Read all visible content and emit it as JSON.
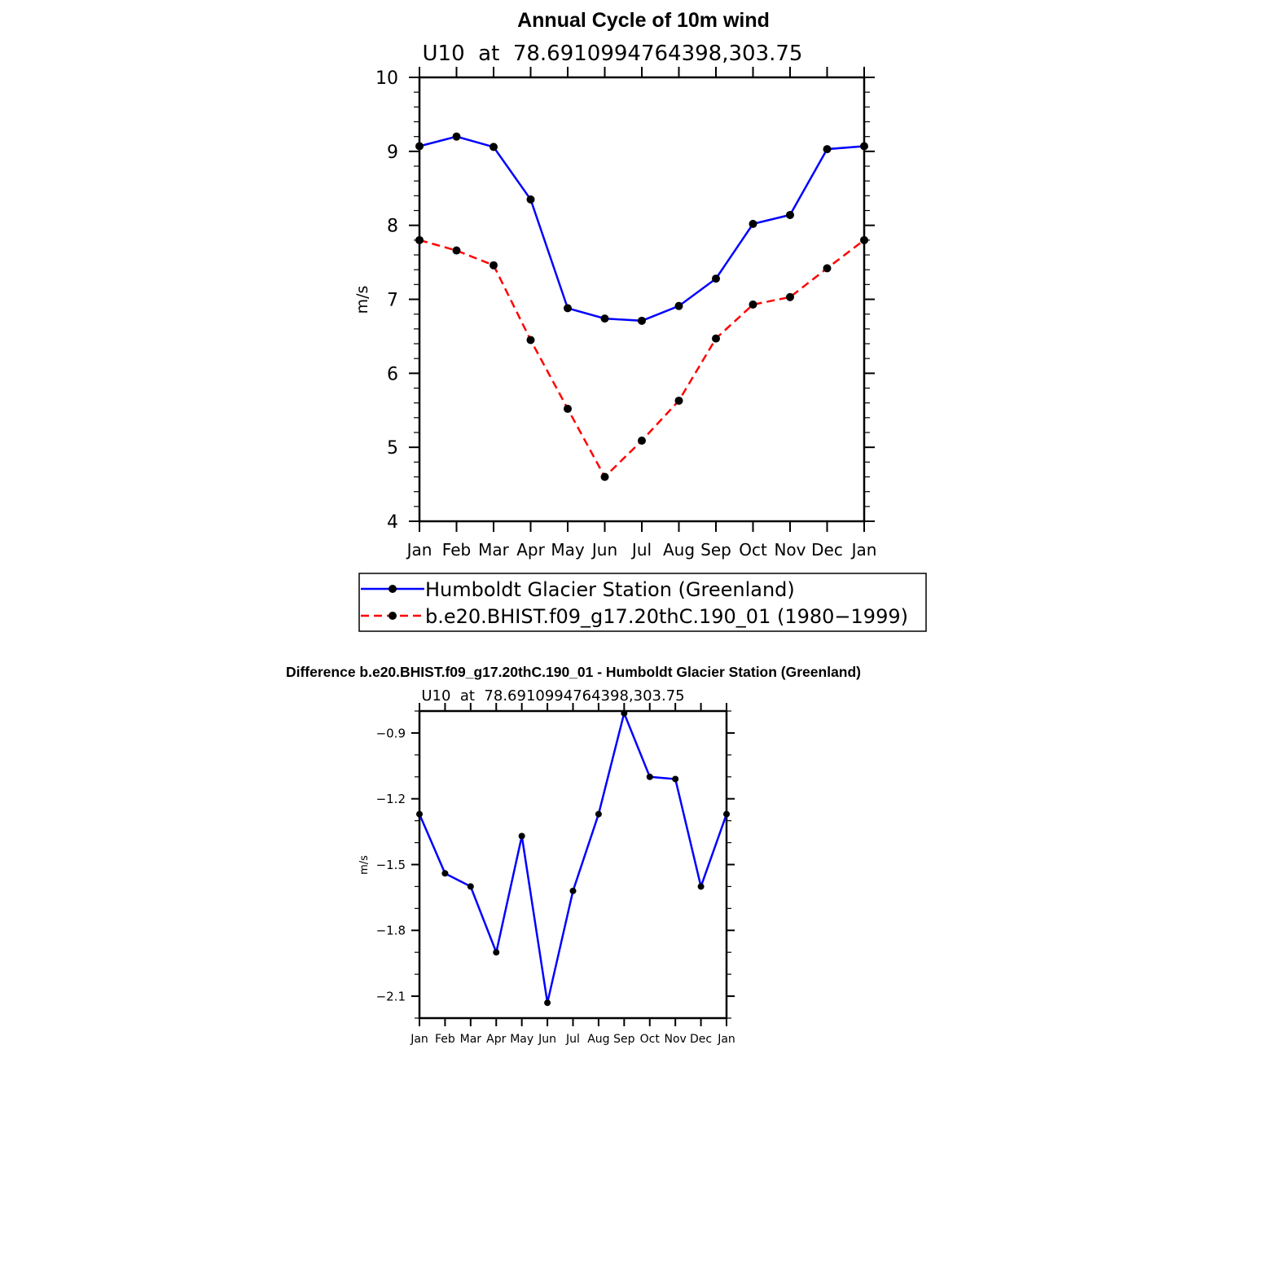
{
  "chart_data": [
    {
      "type": "line",
      "title": "Annual Cycle of 10m wind",
      "subtitle": "U10  at  78.6910994764398,303.75",
      "xlabel": "",
      "ylabel": "m/s",
      "categories": [
        "Jan",
        "Feb",
        "Mar",
        "Apr",
        "May",
        "Jun",
        "Jul",
        "Aug",
        "Sep",
        "Oct",
        "Nov",
        "Dec",
        "Jan"
      ],
      "ylim": [
        4,
        10
      ],
      "yticks": [
        4,
        5,
        6,
        7,
        8,
        9,
        10
      ],
      "legend_position": "bottom",
      "series": [
        {
          "name": "Humboldt Glacier Station (Greenland)",
          "color": "#0000ff",
          "dash": "solid",
          "values": [
            9.07,
            9.2,
            9.06,
            8.35,
            6.88,
            6.74,
            6.71,
            6.91,
            7.28,
            8.02,
            8.14,
            9.03,
            9.07
          ]
        },
        {
          "name": "b.e20.BHIST.f09_g17.20thC.190_01 (1980−1999)",
          "color": "#ff0000",
          "dash": "dashed",
          "values": [
            7.8,
            7.66,
            7.46,
            6.45,
            5.52,
            4.6,
            5.09,
            5.63,
            6.47,
            6.93,
            7.03,
            7.42,
            7.8
          ]
        }
      ]
    },
    {
      "type": "line",
      "title": "Difference b.e20.BHIST.f09_g17.20thC.190_01 - Humboldt Glacier Station (Greenland)",
      "subtitle": "U10  at  78.6910994764398,303.75",
      "xlabel": "",
      "ylabel": "m/s",
      "categories": [
        "Jan",
        "Feb",
        "Mar",
        "Apr",
        "May",
        "Jun",
        "Jul",
        "Aug",
        "Sep",
        "Oct",
        "Nov",
        "Dec",
        "Jan"
      ],
      "ylim": [
        -2.2,
        -0.8
      ],
      "yticks": [
        "−0.9",
        "−1.2",
        "−1.5",
        "−1.8",
        "−2.1"
      ],
      "series": [
        {
          "color": "#0000ff",
          "values": [
            -1.27,
            -1.54,
            -1.6,
            -1.9,
            -1.37,
            -2.13,
            -1.62,
            -1.27,
            -0.81,
            -1.1,
            -1.11,
            -1.6,
            -1.27
          ]
        }
      ]
    }
  ]
}
